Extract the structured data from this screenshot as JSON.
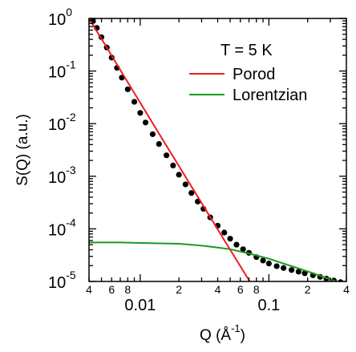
{
  "chart_data": {
    "type": "line",
    "title": "",
    "x_scale": "log",
    "y_scale": "log",
    "xlim": [
      0.004,
      0.4
    ],
    "ylim": [
      1e-05,
      1
    ],
    "grid": false,
    "legend_placement": "top-right",
    "xlabel": {
      "base": "Q (",
      "unit": "Å",
      "sup": "-1",
      "close": ")"
    },
    "ylabel": "S(Q) (a.u.)",
    "annotation": "T = 5 K",
    "x_major_ticks": [
      {
        "value": 0.01,
        "label": "0.01"
      },
      {
        "value": 0.1,
        "label": "0.1"
      }
    ],
    "x_minor_ticks": [
      {
        "value": 0.004,
        "label": "4"
      },
      {
        "value": 0.005,
        "label": ""
      },
      {
        "value": 0.006,
        "label": "6"
      },
      {
        "value": 0.007,
        "label": ""
      },
      {
        "value": 0.008,
        "label": "8"
      },
      {
        "value": 0.009,
        "label": ""
      },
      {
        "value": 0.02,
        "label": "2"
      },
      {
        "value": 0.03,
        "label": ""
      },
      {
        "value": 0.04,
        "label": "4"
      },
      {
        "value": 0.05,
        "label": ""
      },
      {
        "value": 0.06,
        "label": "6"
      },
      {
        "value": 0.07,
        "label": ""
      },
      {
        "value": 0.08,
        "label": "8"
      },
      {
        "value": 0.09,
        "label": ""
      },
      {
        "value": 0.2,
        "label": "2"
      },
      {
        "value": 0.3,
        "label": ""
      },
      {
        "value": 0.4,
        "label": "4"
      }
    ],
    "y_ticks": [
      {
        "value": 1,
        "base": "10",
        "exp": "0"
      },
      {
        "value": 0.1,
        "base": "10",
        "exp": "-1"
      },
      {
        "value": 0.01,
        "base": "10",
        "exp": "-2"
      },
      {
        "value": 0.001,
        "base": "10",
        "exp": "-3"
      },
      {
        "value": 0.0001,
        "base": "10",
        "exp": "-4"
      },
      {
        "value": 1e-05,
        "base": "10",
        "exp": "-5"
      }
    ],
    "series": [
      {
        "name": "",
        "kind": "scatter",
        "color": "#000000",
        "x": [
          0.0043,
          0.0046,
          0.005,
          0.0055,
          0.006,
          0.0066,
          0.0072,
          0.008,
          0.009,
          0.01,
          0.011,
          0.0125,
          0.014,
          0.016,
          0.018,
          0.02,
          0.0225,
          0.025,
          0.028,
          0.031,
          0.035,
          0.04,
          0.045,
          0.05,
          0.056,
          0.063,
          0.07,
          0.08,
          0.09,
          0.1,
          0.115,
          0.13,
          0.15,
          0.17,
          0.19,
          0.22,
          0.25,
          0.28,
          0.32,
          0.36
        ],
        "y": [
          0.89,
          0.66,
          0.44,
          0.28,
          0.18,
          0.115,
          0.075,
          0.045,
          0.026,
          0.016,
          0.0105,
          0.0063,
          0.0041,
          0.0025,
          0.0016,
          0.00107,
          0.0007,
          0.00048,
          0.00033,
          0.00024,
          0.000165,
          0.000115,
          8.5e-05,
          6.5e-05,
          5e-05,
          4.1e-05,
          3.5e-05,
          2.9e-05,
          2.5e-05,
          2.2e-05,
          1.95e-05,
          1.8e-05,
          1.65e-05,
          1.53e-05,
          1.43e-05,
          1.31e-05,
          1.22e-05,
          1.13e-05,
          1.04e-05,
          9.7e-06
        ]
      },
      {
        "name": "Porod",
        "kind": "line",
        "color": "#ee1c1c",
        "x": [
          0.004,
          0.0055,
          0.007,
          0.01,
          0.015,
          0.02,
          0.03,
          0.045,
          0.06,
          0.075
        ],
        "y": [
          1.0,
          0.28,
          0.105,
          0.025,
          0.0049,
          0.00156,
          0.00031,
          6.1e-05,
          1.95e-05,
          8e-06
        ]
      },
      {
        "name": "Lorentzian",
        "kind": "line",
        "color": "#1a9a1a",
        "x": [
          0.004,
          0.007,
          0.01,
          0.02,
          0.03,
          0.04,
          0.05,
          0.07,
          0.1,
          0.15,
          0.2,
          0.3,
          0.4
        ],
        "y": [
          5.5e-05,
          5.5e-05,
          5.4e-05,
          5.2e-05,
          4.8e-05,
          4.4e-05,
          4.1e-05,
          3.4e-05,
          2.7e-05,
          1.95e-05,
          1.55e-05,
          1.1e-05,
          8.5e-06
        ]
      }
    ]
  }
}
